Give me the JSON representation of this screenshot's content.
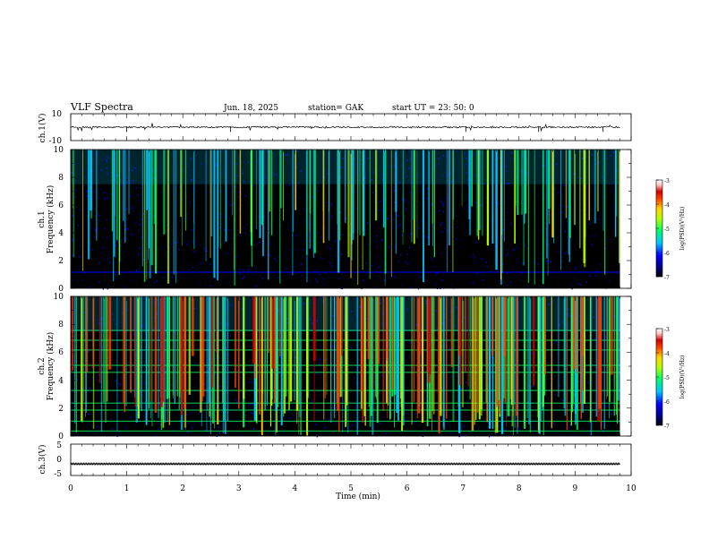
{
  "header": {
    "title": "VLF  Spectra",
    "date": "Jun. 18, 2025",
    "station": "station= GAK",
    "start_ut": "start  UT  =    23: 50: 0"
  },
  "colors": {
    "background": "#000000",
    "trace": "#000000",
    "colormap": [
      "#000000",
      "#00008b",
      "#0000ff",
      "#00c8ff",
      "#00ff66",
      "#b4ff00",
      "#ffd700",
      "#ff4500",
      "#d40000",
      "#ffc8c8",
      "#ffffff"
    ]
  },
  "chart_data": [
    {
      "type": "line",
      "panel": "ch1-waveform",
      "ylabel": "ch.1(V)",
      "xlim": [
        0,
        10
      ],
      "ylim": [
        -10,
        10
      ],
      "yticks": [
        "10",
        "-10"
      ],
      "baseline": 0,
      "grid": false
    },
    {
      "type": "heatmap",
      "panel": "ch1-spectrogram",
      "ylabel_line1": "ch.1",
      "ylabel_line2": "Frequency  (kHz)",
      "xlim": [
        0,
        10
      ],
      "data_end_min": 9.8,
      "ylim": [
        0,
        10
      ],
      "yticks": [
        "0",
        "2",
        "4",
        "6",
        "8",
        "10"
      ],
      "colorbar": {
        "label": "log(PSD)(V²/Hz)",
        "range": [
          -7,
          -3
        ],
        "ticks": [
          "-3",
          "-4",
          "-5",
          "-6",
          "-7"
        ]
      }
    },
    {
      "type": "heatmap",
      "panel": "ch2-spectrogram",
      "ylabel_line1": "ch.2",
      "ylabel_line2": "Frequency  (kHz)",
      "xlim": [
        0,
        10
      ],
      "data_end_min": 9.8,
      "ylim": [
        0,
        10
      ],
      "yticks": [
        "0",
        "2",
        "4",
        "6",
        "8",
        "10"
      ],
      "colorbar": {
        "label": "log(PSD)(V²/Hz)",
        "range": [
          -7,
          -3
        ],
        "ticks": [
          "-3",
          "-4",
          "-5",
          "-6",
          "-7"
        ]
      }
    },
    {
      "type": "line",
      "panel": "ch3-waveform",
      "ylabel": "ch.3(V)",
      "xlim": [
        0,
        10
      ],
      "ylim": [
        -5,
        5
      ],
      "yticks": [
        "5",
        "0",
        "-5"
      ],
      "baseline": -1.3,
      "xlabel": "Time  (min)",
      "xticks": [
        "0",
        "1",
        "2",
        "3",
        "4",
        "5",
        "6",
        "7",
        "8",
        "9",
        "10"
      ]
    }
  ]
}
